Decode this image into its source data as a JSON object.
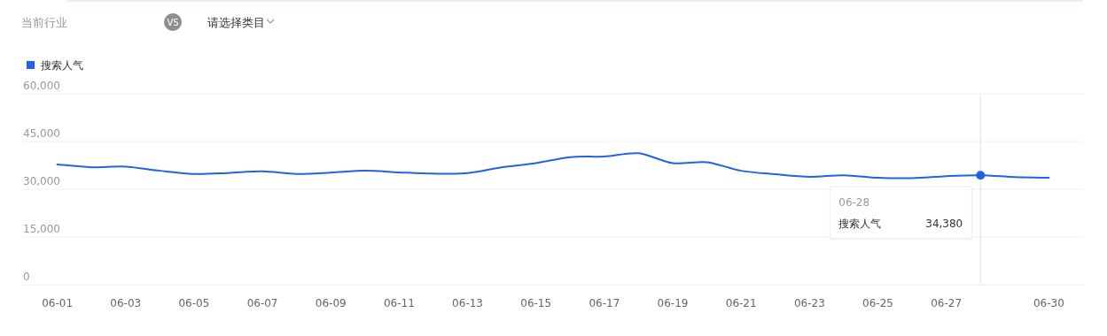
{
  "chart_data": {
    "type": "line",
    "x": [
      "--06-01",
      "--06-02",
      "--06-03",
      "--06-04",
      "--06-05",
      "--06-06",
      "--06-07",
      "--06-08",
      "--06-09",
      "--06-10",
      "--06-11",
      "--06-12",
      "--06-13",
      "--06-14",
      "--06-15",
      "--06-16",
      "--06-17",
      "--06-18",
      "--06-19",
      "--06-20",
      "--06-21",
      "--06-22",
      "--06-23",
      "--06-24",
      "--06-25",
      "--06-26",
      "--06-27",
      "--06-28",
      "--06-29",
      "--06-30"
    ],
    "series": [
      {
        "name": "搜索人气",
        "color": "#2162e8",
        "values": [
          37800,
          36900,
          37100,
          35800,
          34800,
          35100,
          35600,
          34800,
          35200,
          35800,
          35300,
          34900,
          35100,
          36900,
          38200,
          40100,
          40300,
          41300,
          38200,
          38500,
          35800,
          34700,
          33900,
          34400,
          33600,
          33500,
          34100,
          34380,
          33800,
          33600
        ]
      }
    ],
    "xlim": [
      "--05-31",
      "--07-01"
    ],
    "xticks": [
      {
        "value": "--06-01",
        "label": "06-01"
      },
      {
        "value": "--06-03",
        "label": "06-03"
      },
      {
        "value": "--06-05",
        "label": "06-05"
      },
      {
        "value": "--06-07",
        "label": "06-07"
      },
      {
        "value": "--06-09",
        "label": "06-09"
      },
      {
        "value": "--06-11",
        "label": "06-11"
      },
      {
        "value": "--06-13",
        "label": "06-13"
      },
      {
        "value": "--06-15",
        "label": "06-15"
      },
      {
        "value": "--06-17",
        "label": "06-17"
      },
      {
        "value": "--06-19",
        "label": "06-19"
      },
      {
        "value": "--06-21",
        "label": "06-21"
      },
      {
        "value": "--06-23",
        "label": "06-23"
      },
      {
        "value": "--06-25",
        "label": "06-25"
      },
      {
        "value": "--06-27",
        "label": "06-27"
      },
      {
        "value": "--06-30",
        "label": "06-30"
      }
    ],
    "ylim": [
      0,
      60000
    ],
    "yticks": [
      {
        "value": 0,
        "label": "0"
      },
      {
        "value": 15000,
        "label": "15,000"
      },
      {
        "value": 30000,
        "label": "30,000"
      },
      {
        "value": 45000,
        "label": "45,000"
      },
      {
        "value": 60000,
        "label": "60,000"
      }
    ],
    "grid": "y",
    "legend": "top left",
    "ref_lines": [
      {
        "axis": "x",
        "value": "--06-28",
        "color": "#e3e3e3"
      }
    ],
    "annotations": [
      "当前行业",
      "VS",
      "请选择类目",
      "06-28",
      "搜索人气",
      "34,380"
    ]
  }
}
